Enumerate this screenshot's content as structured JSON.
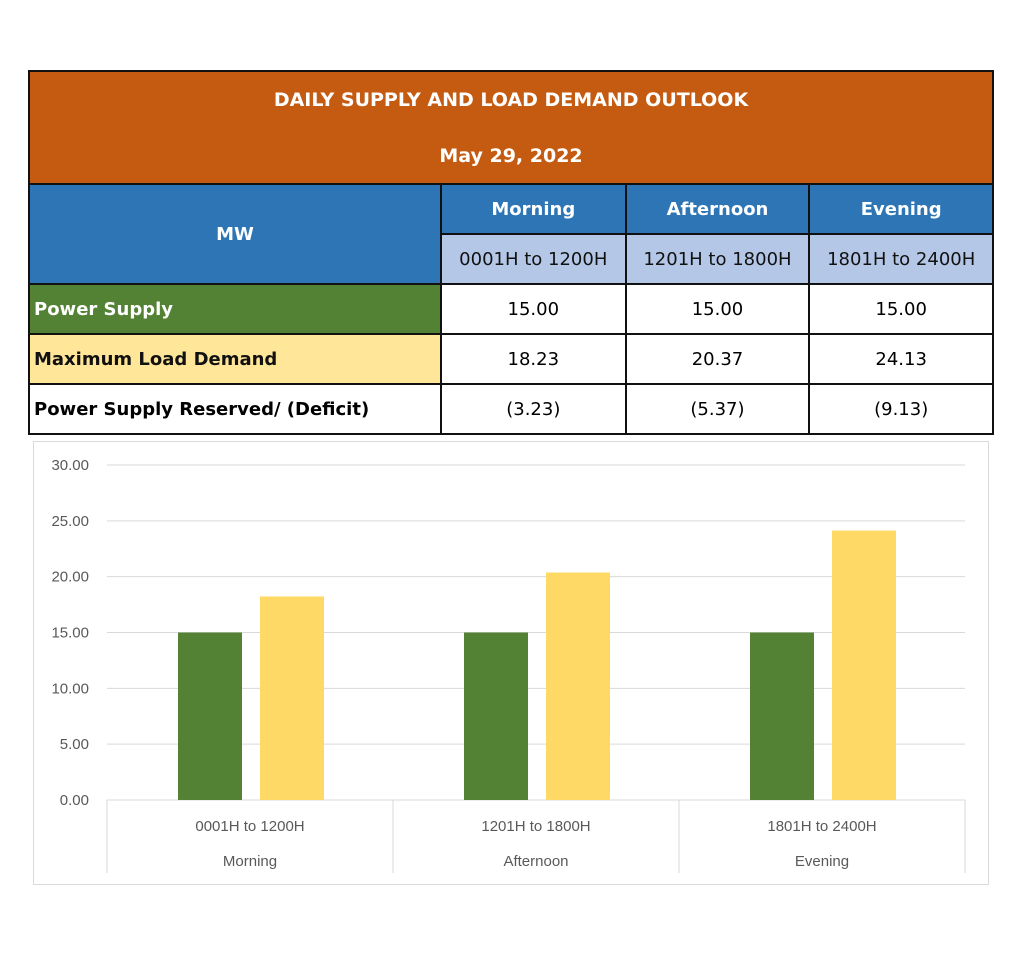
{
  "table": {
    "title": "DAILY SUPPLY AND LOAD DEMAND OUTLOOK",
    "date": "May 29, 2022",
    "unit_label": "MW",
    "periods": [
      {
        "name": "Morning",
        "range": "0001H to 1200H"
      },
      {
        "name": "Afternoon",
        "range": "1201H to 1800H"
      },
      {
        "name": "Evening",
        "range": "1801H to 2400H"
      }
    ],
    "rows": [
      {
        "label": "Power Supply",
        "values": [
          "15.00",
          "15.00",
          "15.00"
        ]
      },
      {
        "label": "Maximum Load Demand",
        "values": [
          "18.23",
          "20.37",
          "24.13"
        ]
      },
      {
        "label": "Power Supply Reserved/ (Deficit)",
        "values": [
          "(3.23)",
          "(5.37)",
          "(9.13)"
        ]
      }
    ]
  },
  "chart_data": {
    "type": "bar",
    "categories": [
      {
        "range": "0001H to 1200H",
        "period": "Morning"
      },
      {
        "range": "1201H to 1800H",
        "period": "Afternoon"
      },
      {
        "range": "1801H to 2400H",
        "period": "Evening"
      }
    ],
    "series": [
      {
        "name": "Power Supply",
        "color": "#548235",
        "values": [
          15.0,
          15.0,
          15.0
        ]
      },
      {
        "name": "Maximum Load Demand",
        "color": "#ffd966",
        "values": [
          18.23,
          20.37,
          24.13
        ]
      }
    ],
    "ylim": [
      0,
      30
    ],
    "yticks": [
      "0.00",
      "5.00",
      "10.00",
      "15.00",
      "20.00",
      "25.00",
      "30.00"
    ],
    "grid": true
  }
}
